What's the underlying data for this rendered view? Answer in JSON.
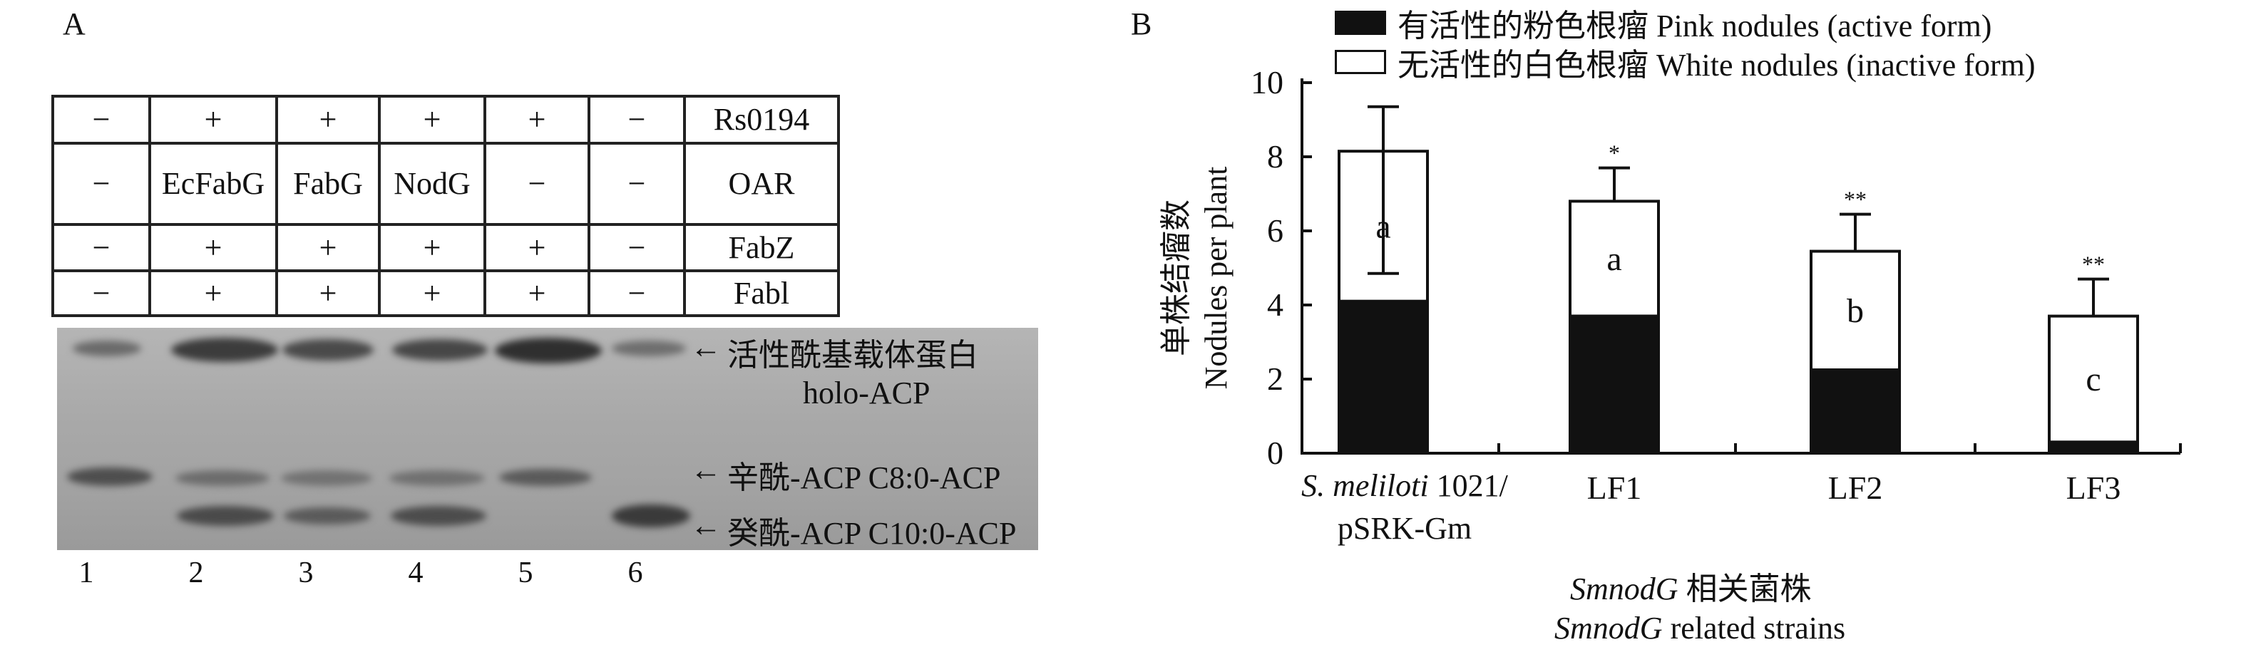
{
  "panel_a": {
    "label": "A",
    "rows": [
      {
        "name": "Rs0194",
        "cells": [
          "−",
          "+",
          "+",
          "+",
          "+",
          "−"
        ]
      },
      {
        "name": "OAR",
        "cells": [
          "−",
          "EcFabG",
          "FabG",
          "NodG",
          "−",
          "−"
        ]
      },
      {
        "name": "FabZ",
        "cells": [
          "−",
          "+",
          "+",
          "+",
          "+",
          "−"
        ]
      },
      {
        "name": "Fabl",
        "cells": [
          "−",
          "+",
          "+",
          "+",
          "+",
          "−"
        ]
      }
    ],
    "lanes": [
      "1",
      "2",
      "3",
      "4",
      "5",
      "6"
    ],
    "band_annotations": [
      {
        "cn": "活性酰基载体蛋白",
        "en": "holo-ACP"
      },
      {
        "cn": "辛酰-ACP",
        "en": "C8:0-ACP"
      },
      {
        "cn": "癸酰-ACP",
        "en": "C10:0-ACP"
      }
    ],
    "arrow_glyph": "←"
  },
  "panel_b": {
    "label": "B",
    "legend": [
      {
        "label": "有活性的粉色根瘤 Pink nodules (active form)",
        "color": "#111111"
      },
      {
        "label": "无活性的白色根瘤 White nodules (inactive form)",
        "color": "#ffffff"
      }
    ]
  },
  "chart_data": {
    "type": "bar",
    "stacked": true,
    "categories": [
      "S. meliloti 1021/ pSRK-Gm",
      "LF1",
      "LF2",
      "LF3"
    ],
    "category_lines": [
      [
        {
          "text": "S. meliloti",
          "italic": true
        },
        {
          "text": " 1021/",
          "italic": false
        }
      ],
      [
        {
          "text": "pSRK-Gm",
          "italic": false
        }
      ]
    ],
    "series": [
      {
        "name": "有活性的粉色根瘤 Pink nodules (active form)",
        "color": "#111111",
        "values": [
          4.1,
          3.7,
          2.25,
          0.3
        ]
      },
      {
        "name": "无活性的白色根瘤 White nodules (inactive form)",
        "color": "#ffffff",
        "values": [
          4.05,
          3.1,
          3.2,
          3.4
        ]
      }
    ],
    "totals": [
      8.15,
      6.8,
      5.45,
      3.7
    ],
    "error_upper": [
      9.35,
      7.7,
      6.45,
      4.7
    ],
    "error_lower": [
      4.85,
      null,
      null,
      null
    ],
    "significance": [
      "",
      "*",
      "**",
      "**"
    ],
    "letters": [
      "a",
      "a",
      "b",
      "c"
    ],
    "ylabel_cn": "单株结瘤数",
    "ylabel_en": "Nodules per plant",
    "xlabel_cn_italic": "SmnodG",
    "xlabel_cn_rest": " 相关菌株",
    "xlabel_en_italic": "SmnodG",
    "xlabel_en_rest": " related strains",
    "ylim": [
      0,
      10
    ],
    "yticks": [
      "0",
      "2",
      "4",
      "6",
      "8",
      "10"
    ],
    "grid": false
  }
}
